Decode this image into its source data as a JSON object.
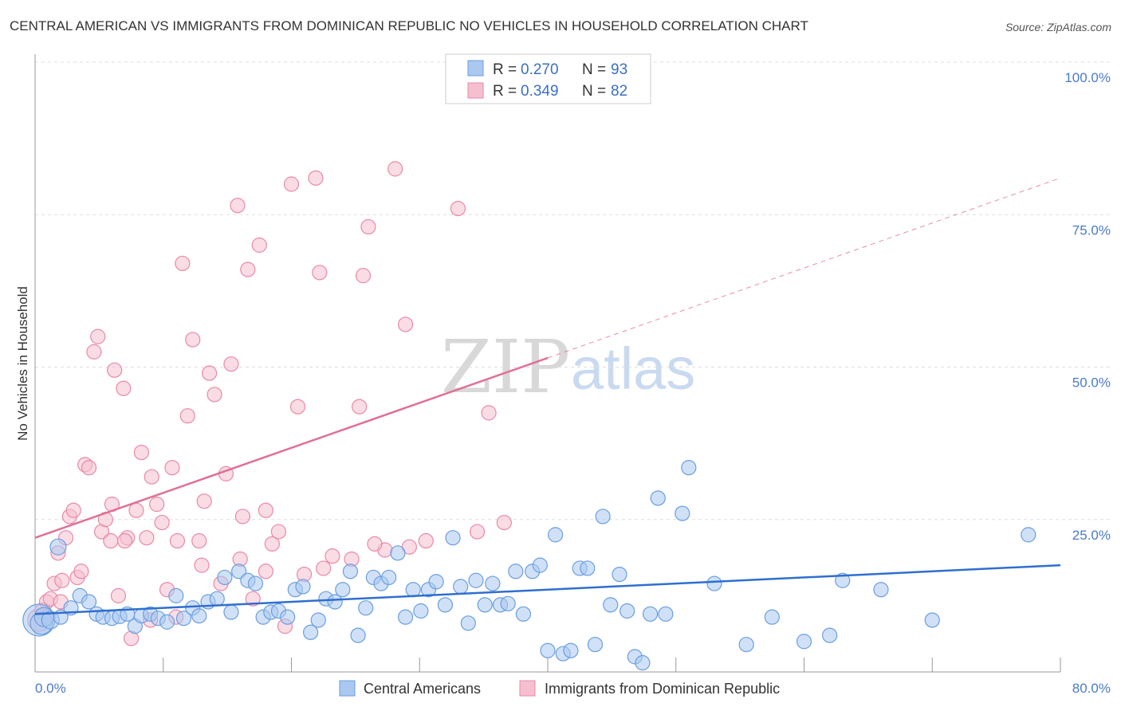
{
  "title": "CENTRAL AMERICAN VS IMMIGRANTS FROM DOMINICAN REPUBLIC NO VEHICLES IN HOUSEHOLD CORRELATION CHART",
  "source": "Source: ZipAtlas.com",
  "watermark": {
    "zip": "ZIP",
    "atlas": "atlas"
  },
  "legend": {
    "rows": [
      {
        "r_label": "R =",
        "r_value": "0.270",
        "n_label": "N =",
        "n_value": "93"
      },
      {
        "r_label": "R =",
        "r_value": "0.349",
        "n_label": "N =",
        "n_value": "82"
      }
    ]
  },
  "colors": {
    "blue_fill": "#aac8f0",
    "blue_stroke": "#6a9ee0",
    "blue_line": "#2f6fcf",
    "pink_fill": "#f6bfd0",
    "pink_stroke": "#e88aa6",
    "pink_line": "#e07096",
    "tick_label": "#4a7bc8",
    "grid": "#dddddd"
  },
  "chart_data": {
    "type": "scatter",
    "title": "CENTRAL AMERICAN VS IMMIGRANTS FROM DOMINICAN REPUBLIC NO VEHICLES IN HOUSEHOLD CORRELATION CHART",
    "xlabel": "",
    "ylabel": "No Vehicles in Household",
    "xlim": [
      0,
      80
    ],
    "ylim": [
      0,
      100
    ],
    "x_tick_labels": [
      "0.0%",
      "80.0%"
    ],
    "y_tick_labels": [
      "100.0%",
      "75.0%",
      "50.0%",
      "25.0%"
    ],
    "y_ticks": [
      100,
      75,
      50,
      25
    ],
    "grid": true,
    "legend_position": "top-center",
    "series": [
      {
        "name": "Central Americans",
        "color": "#6a9ee0",
        "r": 0.27,
        "n": 93,
        "trend": {
          "x0": 0,
          "y0": 9.5,
          "x1": 80,
          "y1": 17.5
        },
        "points": [
          [
            0.3,
            8.5,
            20
          ],
          [
            0.5,
            8.0,
            14
          ],
          [
            0.7,
            9.0,
            12
          ],
          [
            1.2,
            8.5,
            11
          ],
          [
            1.8,
            20.5,
            10
          ],
          [
            2.0,
            9.0,
            9
          ],
          [
            2.8,
            10.5,
            9
          ],
          [
            3.5,
            12.5,
            9
          ],
          [
            4.2,
            11.5,
            9
          ],
          [
            4.8,
            9.5,
            9
          ],
          [
            5.3,
            9.0,
            9
          ],
          [
            6.0,
            8.8,
            9
          ],
          [
            6.6,
            9.1,
            9
          ],
          [
            7.2,
            9.5,
            9
          ],
          [
            7.8,
            7.5,
            9
          ],
          [
            8.3,
            9.2,
            9
          ],
          [
            9.0,
            9.5,
            9
          ],
          [
            9.6,
            8.8,
            9
          ],
          [
            10.3,
            8.2,
            9
          ],
          [
            11.0,
            12.5,
            9
          ],
          [
            11.6,
            8.8,
            9
          ],
          [
            12.3,
            10.5,
            9
          ],
          [
            12.8,
            9.2,
            9
          ],
          [
            13.5,
            11.5,
            9
          ],
          [
            14.2,
            12.0,
            9
          ],
          [
            14.8,
            15.5,
            9
          ],
          [
            15.3,
            9.8,
            9
          ],
          [
            15.9,
            16.5,
            9
          ],
          [
            16.6,
            15.0,
            9
          ],
          [
            17.2,
            14.5,
            9
          ],
          [
            17.8,
            9.0,
            9
          ],
          [
            18.4,
            9.8,
            9
          ],
          [
            19.0,
            10.0,
            9
          ],
          [
            19.7,
            9.0,
            9
          ],
          [
            20.3,
            13.5,
            9
          ],
          [
            20.9,
            14.0,
            9
          ],
          [
            21.5,
            6.5,
            9
          ],
          [
            22.1,
            8.5,
            9
          ],
          [
            22.7,
            12.0,
            9
          ],
          [
            23.4,
            11.5,
            9
          ],
          [
            24.0,
            13.5,
            9
          ],
          [
            24.6,
            16.5,
            9
          ],
          [
            25.2,
            6.0,
            9
          ],
          [
            25.8,
            10.5,
            9
          ],
          [
            26.4,
            15.5,
            9
          ],
          [
            27.0,
            14.5,
            9
          ],
          [
            27.6,
            15.5,
            9
          ],
          [
            28.3,
            19.5,
            9
          ],
          [
            28.9,
            9.0,
            9
          ],
          [
            29.5,
            13.5,
            9
          ],
          [
            30.1,
            10.0,
            9
          ],
          [
            30.7,
            13.5,
            9
          ],
          [
            31.3,
            14.8,
            9
          ],
          [
            32.0,
            11.0,
            9
          ],
          [
            32.6,
            22.0,
            9
          ],
          [
            33.2,
            14.0,
            9
          ],
          [
            33.8,
            8.0,
            9
          ],
          [
            34.4,
            15.0,
            9
          ],
          [
            35.1,
            11.0,
            9
          ],
          [
            35.7,
            14.5,
            9
          ],
          [
            36.3,
            11.0,
            9
          ],
          [
            36.9,
            11.2,
            9
          ],
          [
            37.5,
            16.5,
            9
          ],
          [
            38.1,
            9.5,
            9
          ],
          [
            38.8,
            16.5,
            9
          ],
          [
            39.4,
            17.5,
            9
          ],
          [
            40.0,
            3.5,
            9
          ],
          [
            40.6,
            22.5,
            9
          ],
          [
            41.2,
            3.0,
            9
          ],
          [
            41.8,
            3.5,
            9
          ],
          [
            42.5,
            17.0,
            9
          ],
          [
            43.1,
            17.0,
            9
          ],
          [
            43.7,
            4.5,
            9
          ],
          [
            44.3,
            25.5,
            9
          ],
          [
            44.9,
            11.0,
            9
          ],
          [
            45.6,
            16.0,
            9
          ],
          [
            46.2,
            10.0,
            9
          ],
          [
            46.8,
            2.5,
            9
          ],
          [
            47.4,
            1.5,
            9
          ],
          [
            48.0,
            9.5,
            9
          ],
          [
            48.6,
            28.5,
            9
          ],
          [
            49.2,
            9.5,
            9
          ],
          [
            50.5,
            26.0,
            9
          ],
          [
            51.0,
            33.5,
            9
          ],
          [
            53.0,
            14.5,
            9
          ],
          [
            55.5,
            4.5,
            9
          ],
          [
            57.5,
            9.0,
            9
          ],
          [
            60.0,
            5.0,
            9
          ],
          [
            62.0,
            6.0,
            9
          ],
          [
            63.0,
            15.0,
            9
          ],
          [
            66.0,
            13.5,
            9
          ],
          [
            70.0,
            8.5,
            9
          ],
          [
            77.5,
            22.5,
            9
          ]
        ]
      },
      {
        "name": "Immigrants from Dominican Republic",
        "color": "#e88aa6",
        "r": 0.349,
        "n": 82,
        "trend": {
          "x0": 0,
          "y0": 22.0,
          "x1": 40,
          "y1": 51.5
        },
        "trend_dashed": {
          "x0": 40,
          "y0": 51.5,
          "x1": 80,
          "y1": 81.0
        },
        "points": [
          [
            0.3,
            8.5,
            14
          ],
          [
            0.6,
            10.0,
            10
          ],
          [
            0.9,
            11.5,
            9
          ],
          [
            1.2,
            12.0,
            9
          ],
          [
            1.5,
            14.5,
            9
          ],
          [
            1.8,
            19.5,
            9
          ],
          [
            2.1,
            15.0,
            9
          ],
          [
            2.4,
            22.0,
            9
          ],
          [
            2.7,
            25.5,
            9
          ],
          [
            3.0,
            26.5,
            9
          ],
          [
            3.3,
            15.5,
            9
          ],
          [
            3.6,
            16.5,
            9
          ],
          [
            3.9,
            34.0,
            9
          ],
          [
            4.2,
            33.5,
            9
          ],
          [
            4.6,
            52.5,
            9
          ],
          [
            4.9,
            55.0,
            9
          ],
          [
            5.2,
            23.0,
            9
          ],
          [
            5.5,
            25.0,
            9
          ],
          [
            5.9,
            21.5,
            9
          ],
          [
            6.2,
            49.5,
            9
          ],
          [
            6.5,
            12.5,
            9
          ],
          [
            6.9,
            46.5,
            9
          ],
          [
            7.2,
            22.0,
            9
          ],
          [
            7.5,
            5.5,
            9
          ],
          [
            7.9,
            26.5,
            9
          ],
          [
            8.3,
            36.0,
            9
          ],
          [
            8.7,
            22.0,
            9
          ],
          [
            9.1,
            32.0,
            9
          ],
          [
            9.5,
            27.5,
            9
          ],
          [
            9.9,
            24.5,
            9
          ],
          [
            10.3,
            13.5,
            9
          ],
          [
            10.7,
            33.5,
            9
          ],
          [
            11.1,
            21.5,
            9
          ],
          [
            11.5,
            67.0,
            9
          ],
          [
            11.9,
            42.0,
            9
          ],
          [
            12.3,
            54.5,
            9
          ],
          [
            12.8,
            21.5,
            9
          ],
          [
            13.2,
            28.0,
            9
          ],
          [
            13.6,
            49.0,
            9
          ],
          [
            14.0,
            45.5,
            9
          ],
          [
            14.5,
            14.5,
            9
          ],
          [
            14.9,
            32.5,
            9
          ],
          [
            15.3,
            50.5,
            9
          ],
          [
            15.8,
            76.5,
            9
          ],
          [
            16.2,
            25.5,
            9
          ],
          [
            16.6,
            66.0,
            9
          ],
          [
            17.0,
            12.0,
            9
          ],
          [
            17.5,
            70.0,
            9
          ],
          [
            18.0,
            26.5,
            9
          ],
          [
            18.5,
            21.0,
            9
          ],
          [
            19.0,
            23.0,
            9
          ],
          [
            19.5,
            7.5,
            9
          ],
          [
            20.0,
            80.0,
            9
          ],
          [
            20.5,
            43.5,
            9
          ],
          [
            21.0,
            16.0,
            9
          ],
          [
            21.9,
            81.0,
            9
          ],
          [
            22.2,
            65.5,
            9
          ],
          [
            23.2,
            19.0,
            9
          ],
          [
            24.7,
            18.5,
            9
          ],
          [
            25.3,
            43.5,
            9
          ],
          [
            25.6,
            65.0,
            9
          ],
          [
            26.0,
            73.0,
            9
          ],
          [
            27.3,
            20.0,
            9
          ],
          [
            28.1,
            82.5,
            9
          ],
          [
            28.9,
            57.0,
            9
          ],
          [
            29.2,
            20.5,
            9
          ],
          [
            30.5,
            21.5,
            9
          ],
          [
            33.0,
            76.0,
            9
          ],
          [
            34.5,
            23.0,
            9
          ],
          [
            35.4,
            42.5,
            9
          ],
          [
            36.6,
            24.5,
            9
          ],
          [
            1.0,
            9.0,
            9
          ],
          [
            2.0,
            11.5,
            9
          ],
          [
            6.0,
            27.5,
            9
          ],
          [
            7.0,
            21.5,
            9
          ],
          [
            9.0,
            8.5,
            9
          ],
          [
            11.0,
            9.0,
            9
          ],
          [
            13.0,
            17.5,
            9
          ],
          [
            16.0,
            18.5,
            9
          ],
          [
            18.0,
            16.5,
            9
          ],
          [
            22.5,
            17.0,
            9
          ],
          [
            26.5,
            21.0,
            9
          ]
        ]
      }
    ]
  },
  "bottom_legend": {
    "items": [
      {
        "label": "Central Americans"
      },
      {
        "label": "Immigrants from Dominican Republic"
      }
    ]
  }
}
